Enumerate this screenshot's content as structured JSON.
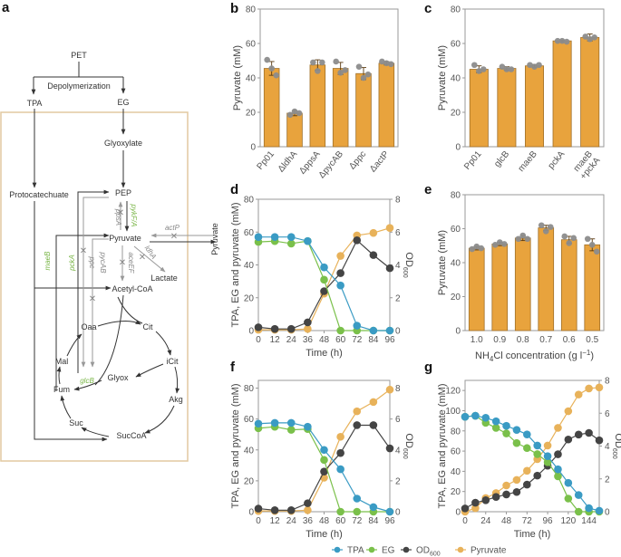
{
  "panel_labels": {
    "a": "a",
    "b": "b",
    "c": "c",
    "d": "d",
    "e": "e",
    "f": "f",
    "g": "g"
  },
  "colors": {
    "bar": "#e8a33d",
    "bar_edge": "#a0702a",
    "dot": "#8c8c8c",
    "TPA": "#3a9bc4",
    "EG": "#7ac04a",
    "OD600": "#444444",
    "Pyruvate": "#e8b25a",
    "box": "#e2c9a0",
    "inhibited": "#999999",
    "green_gene": "#7ab648"
  },
  "diagram": {
    "nodes": {
      "PET": "PET",
      "depolymerization": "Depolymerization",
      "TPA": "TPA",
      "EG": "EG",
      "glyoxylate": "Glyoxylate",
      "protocatechuate": "Protocatechuate",
      "PEP": "PEP",
      "pyruvate": "Pyruvate",
      "pyruvate_ext": "Pyruvate",
      "lactate": "Lactate",
      "acetylcoa": "Acetyl-CoA",
      "oaa": "Oaa",
      "cit": "Cit",
      "icit": "iCit",
      "akg": "Akg",
      "succoa": "SucCoA",
      "suc": "Suc",
      "fum": "Fum",
      "mal": "Mal",
      "glyox": "Glyox"
    },
    "genes": {
      "pykFA": "pykF/A",
      "ppsA": "ppsA",
      "actP": "actP",
      "ldhA": "ldhA",
      "aceEF": "aceEF",
      "maeB": "maeB",
      "pckA": "pckA",
      "ppc": "ppc",
      "pycAB": "pycAB",
      "glcB": "glcB"
    }
  },
  "legend": {
    "items": [
      {
        "key": "TPA",
        "label": "TPA"
      },
      {
        "key": "EG",
        "label": "EG"
      },
      {
        "key": "OD600",
        "label": "OD",
        "sub": "600"
      },
      {
        "key": "Pyruvate",
        "label": "Pyruvate"
      }
    ]
  },
  "chart_data": [
    {
      "id": "b",
      "type": "bar",
      "title": "",
      "xlabel": "",
      "ylabel": "Pyruvate (mM)",
      "ylim": [
        0,
        80
      ],
      "yticks": [
        0,
        20,
        40,
        60,
        80
      ],
      "categories": [
        "Pp01",
        "ΔldhA",
        "ΔppsA",
        "ΔpycAB",
        "Δppc",
        "ΔactP"
      ],
      "values": [
        45.5,
        19.5,
        47.5,
        45.5,
        42.5,
        48.5
      ],
      "errors": [
        4,
        1.5,
        3,
        3.5,
        3.5,
        1
      ],
      "points": [
        [
          50.5,
          45.5,
          41.5
        ],
        [
          18.5,
          20.5,
          19.5
        ],
        [
          49,
          44,
          49
        ],
        [
          49.5,
          43,
          44.5
        ],
        [
          46.5,
          40,
          42
        ],
        [
          49.5,
          48.5,
          48
        ]
      ]
    },
    {
      "id": "c",
      "type": "bar",
      "title": "",
      "xlabel": "",
      "ylabel": "Pyruvate (mM)",
      "ylim": [
        0,
        80
      ],
      "yticks": [
        0,
        20,
        40,
        60,
        80
      ],
      "categories": [
        "Pp01",
        "glcB",
        "maeB",
        "pckA",
        "maeB\n+pckA"
      ],
      "values": [
        45,
        45.5,
        47,
        61.5,
        63.5
      ],
      "errors": [
        2,
        1,
        0.8,
        0.5,
        2
      ],
      "points": [
        [
          47.5,
          44,
          45
        ],
        [
          46.5,
          45,
          45
        ],
        [
          47.5,
          46.5,
          47.5
        ],
        [
          61.5,
          61.5,
          61
        ],
        [
          64,
          62.5,
          63.5
        ]
      ]
    },
    {
      "id": "d",
      "type": "line",
      "xlabel": "Time (h)",
      "ylabel": "TPA, EG and pyruvate (mM)",
      "ylabel2": "OD600",
      "x": [
        0,
        12,
        24,
        36,
        48,
        60,
        72,
        84,
        96
      ],
      "xlim": [
        0,
        96
      ],
      "xticks": [
        0,
        12,
        24,
        36,
        48,
        60,
        72,
        84,
        96
      ],
      "ylim": [
        0,
        80
      ],
      "yticks": [
        0,
        20,
        40,
        60,
        80
      ],
      "y2lim": [
        0,
        8
      ],
      "y2ticks": [
        0,
        2,
        4,
        6,
        8
      ],
      "series": [
        {
          "name": "TPA",
          "axis": "left",
          "values": [
            57,
            57,
            57,
            54.5,
            38.5,
            27.5,
            3,
            0,
            0
          ]
        },
        {
          "name": "EG",
          "axis": "left",
          "values": [
            54,
            54.5,
            53,
            54.5,
            31,
            0,
            0,
            0,
            0
          ]
        },
        {
          "name": "OD600",
          "axis": "right",
          "values": [
            0.2,
            0.1,
            0.1,
            0.5,
            2.4,
            3.5,
            5.5,
            4.6,
            3.8
          ]
        },
        {
          "name": "Pyruvate",
          "axis": "left",
          "values": [
            0.5,
            0.5,
            0.5,
            1,
            22.5,
            45.5,
            58,
            59.5,
            62.5
          ]
        }
      ]
    },
    {
      "id": "e",
      "type": "bar",
      "xlabel": "NH4Cl concentration (g l-1)",
      "ylabel": "Pyruvate (mM)",
      "ylim": [
        0,
        80
      ],
      "yticks": [
        0,
        20,
        40,
        60,
        80
      ],
      "categories": [
        "1.0",
        "0.9",
        "0.8",
        "0.7",
        "0.6",
        "0.5"
      ],
      "values": [
        48.5,
        51,
        54.5,
        60.5,
        53.5,
        50.5
      ],
      "errors": [
        1,
        1,
        1.5,
        1.5,
        2,
        3.5
      ],
      "points": [
        [
          48,
          49.5,
          48.5
        ],
        [
          50.5,
          52,
          51
        ],
        [
          54,
          56,
          54
        ],
        [
          62,
          58.5,
          61
        ],
        [
          55.5,
          51.5,
          54.5
        ],
        [
          54,
          50.5,
          46.5
        ]
      ]
    },
    {
      "id": "f",
      "type": "line",
      "xlabel": "Time (h)",
      "ylabel": "TPA, EG and pyruvate (mM)",
      "ylabel2": "OD600",
      "x": [
        0,
        12,
        24,
        36,
        48,
        60,
        72,
        84,
        96
      ],
      "xlim": [
        0,
        96
      ],
      "xticks": [
        0,
        12,
        24,
        36,
        48,
        60,
        72,
        84,
        96
      ],
      "ylim": [
        0,
        85
      ],
      "yticks": [
        0,
        20,
        40,
        60,
        80
      ],
      "y2lim": [
        0,
        8.5
      ],
      "y2ticks": [
        0,
        2,
        4,
        6,
        8
      ],
      "series": [
        {
          "name": "TPA",
          "axis": "left",
          "values": [
            57,
            57.5,
            57.5,
            55,
            40,
            27.5,
            8.5,
            3,
            0
          ]
        },
        {
          "name": "EG",
          "axis": "left",
          "values": [
            54,
            55,
            53,
            53.5,
            33.5,
            0,
            0,
            0,
            0
          ]
        },
        {
          "name": "OD600",
          "axis": "right",
          "values": [
            0.2,
            0.1,
            0.1,
            0.55,
            2.6,
            3.8,
            5.6,
            5.6,
            4.1
          ]
        },
        {
          "name": "Pyruvate",
          "axis": "left",
          "values": [
            0.5,
            0.5,
            0.5,
            1,
            22,
            48.5,
            65,
            71,
            79
          ]
        }
      ]
    },
    {
      "id": "g",
      "type": "line",
      "xlabel": "Time (h)",
      "ylabel": "TPA, EG and pyruvate (mM)",
      "ylabel2": "OD600",
      "x": [
        0,
        12,
        24,
        36,
        48,
        60,
        72,
        84,
        96,
        108,
        120,
        132,
        144,
        156
      ],
      "xlim": [
        0,
        156
      ],
      "xticks": [
        0,
        24,
        48,
        72,
        96,
        120,
        144
      ],
      "ylim": [
        0,
        130
      ],
      "yticks": [
        0,
        20,
        40,
        60,
        80,
        100,
        120
      ],
      "y2lim": [
        0,
        8
      ],
      "y2ticks": [
        0,
        2,
        4,
        6,
        8
      ],
      "series": [
        {
          "name": "TPA",
          "axis": "left",
          "values": [
            94,
            95,
            93,
            89.5,
            85,
            81,
            76.5,
            65.5,
            55,
            42,
            28.5,
            16.5,
            3.5,
            1
          ]
        },
        {
          "name": "EG",
          "axis": "left",
          "values": [
            94,
            95,
            88,
            83,
            77.5,
            68,
            63,
            57,
            49,
            35,
            13,
            0,
            0,
            0
          ]
        },
        {
          "name": "OD600",
          "axis": "right",
          "values": [
            0.2,
            0.55,
            0.7,
            0.9,
            1.05,
            1.2,
            1.65,
            2.2,
            2.8,
            3.5,
            4.4,
            4.7,
            4.8,
            4.35
          ]
        },
        {
          "name": "Pyruvate",
          "axis": "left",
          "values": [
            0,
            3.5,
            13.5,
            18.5,
            26,
            31.5,
            40.5,
            52,
            65.5,
            83,
            99.5,
            116,
            122,
            123
          ]
        }
      ]
    }
  ]
}
